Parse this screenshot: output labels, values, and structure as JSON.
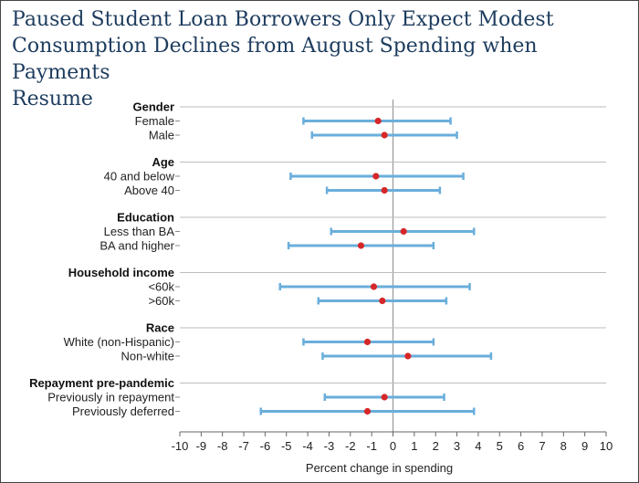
{
  "chart_data": {
    "type": "error-bar",
    "title_lines": [
      "Paused Student Loan Borrowers Only Expect Modest",
      "Consumption Declines from August Spending when Payments",
      "Resume"
    ],
    "xlabel": "Percent change in spending",
    "xlim": [
      -10,
      10
    ],
    "xticks": [
      -10,
      -9,
      -8,
      -7,
      -6,
      -5,
      -4,
      -3,
      -2,
      -1,
      0,
      1,
      2,
      3,
      4,
      5,
      6,
      7,
      8,
      9,
      10
    ],
    "groups": [
      {
        "name": "Gender",
        "rows": [
          {
            "label": "Female",
            "low": -4.2,
            "point": -0.7,
            "high": 2.7
          },
          {
            "label": "Male",
            "low": -3.8,
            "point": -0.4,
            "high": 3.0
          }
        ]
      },
      {
        "name": "Age",
        "rows": [
          {
            "label": "40 and below",
            "low": -4.8,
            "point": -0.8,
            "high": 3.3
          },
          {
            "label": "Above 40",
            "low": -3.1,
            "point": -0.4,
            "high": 2.2
          }
        ]
      },
      {
        "name": "Education",
        "rows": [
          {
            "label": "Less than BA",
            "low": -2.9,
            "point": 0.5,
            "high": 3.8
          },
          {
            "label": "BA and higher",
            "low": -4.9,
            "point": -1.5,
            "high": 1.9
          }
        ]
      },
      {
        "name": "Household income",
        "rows": [
          {
            "label": "<60k",
            "low": -5.3,
            "point": -0.9,
            "high": 3.6
          },
          {
            "label": ">60k",
            "low": -3.5,
            "point": -0.5,
            "high": 2.5
          }
        ]
      },
      {
        "name": "Race",
        "rows": [
          {
            "label": "White (non-Hispanic)",
            "low": -4.2,
            "point": -1.2,
            "high": 1.9
          },
          {
            "label": "Non-white",
            "low": -3.3,
            "point": 0.7,
            "high": 4.6
          }
        ]
      },
      {
        "name": "Repayment pre-pandemic",
        "rows": [
          {
            "label": "Previously in repayment",
            "low": -3.2,
            "point": -0.4,
            "high": 2.4
          },
          {
            "label": "Previously deferred",
            "low": -6.2,
            "point": -1.2,
            "high": 3.8
          }
        ]
      }
    ],
    "colors": {
      "range": "#6aaedb",
      "point": "#d62728",
      "grid": "#bdbdbd",
      "zero": "#9a9a9a"
    }
  }
}
